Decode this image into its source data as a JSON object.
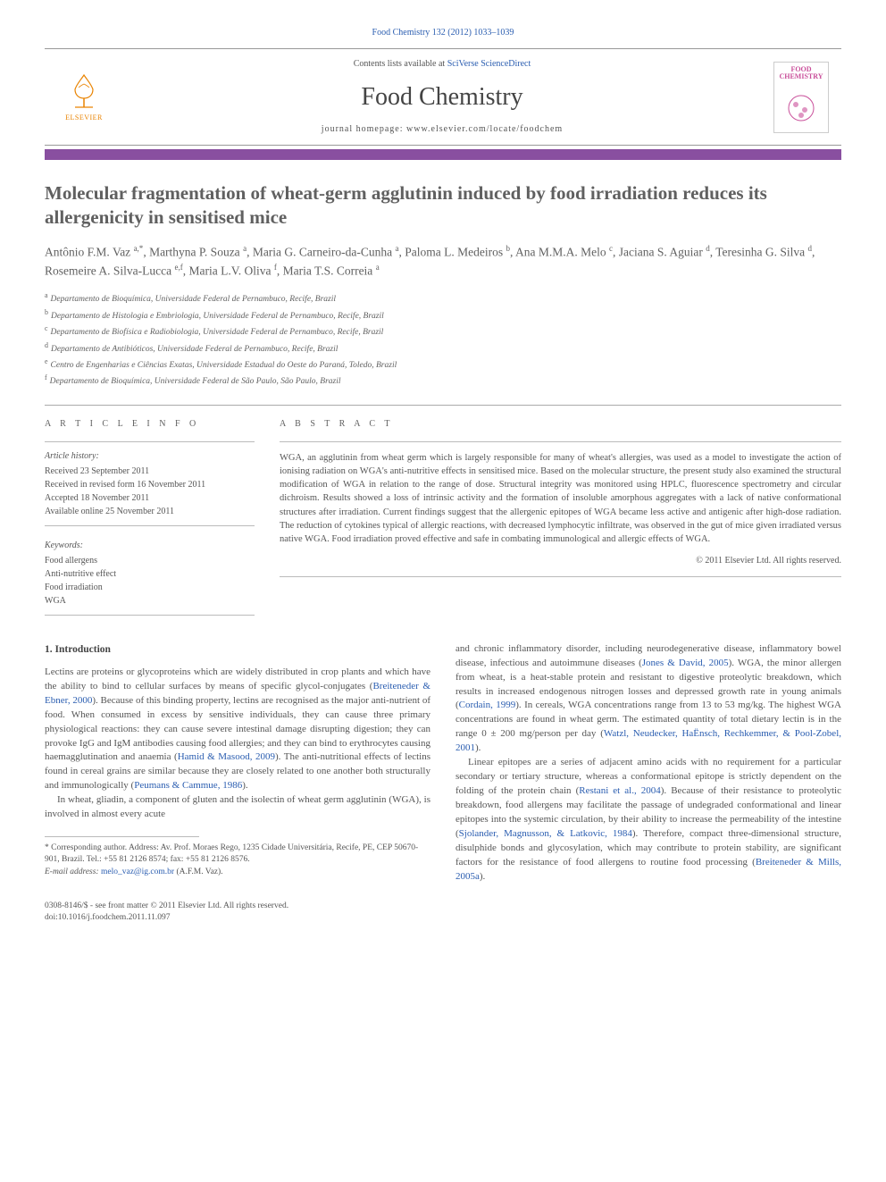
{
  "journalRef": {
    "text": "Food Chemistry 132 (2012) 1033–1039",
    "link": "Food Chemistry"
  },
  "header": {
    "contentsPrefix": "Contents lists available at ",
    "contentsLink": "SciVerse ScienceDirect",
    "journalName": "Food Chemistry",
    "homepageLabel": "journal homepage: ",
    "homepageUrl": "www.elsevier.com/locate/foodchem",
    "elsevierWord": "ELSEVIER",
    "coverTitle": "FOOD CHEMISTRY"
  },
  "article": {
    "title": "Molecular fragmentation of wheat-germ agglutinin induced by food irradiation reduces its allergenicity in sensitised mice",
    "authorsHtml": "Antônio F.M. Vaz <sup>a,*</sup>, Marthyna P. Souza <sup>a</sup>, Maria G. Carneiro-da-Cunha <sup>a</sup>, Paloma L. Medeiros <sup>b</sup>, Ana M.M.A. Melo <sup>c</sup>, Jaciana S. Aguiar <sup>d</sup>, Teresinha G. Silva <sup>d</sup>, Rosemeire A. Silva-Lucca <sup>e,f</sup>, Maria L.V. Oliva <sup>f</sup>, Maria T.S. Correia <sup>a</sup>"
  },
  "affiliations": [
    {
      "key": "a",
      "text": "Departamento de Bioquímica, Universidade Federal de Pernambuco, Recife, Brazil"
    },
    {
      "key": "b",
      "text": "Departamento de Histologia e Embriologia, Universidade Federal de Pernambuco, Recife, Brazil"
    },
    {
      "key": "c",
      "text": "Departamento de Biofísica e Radiobiologia, Universidade Federal de Pernambuco, Recife, Brazil"
    },
    {
      "key": "d",
      "text": "Departamento de Antibióticos, Universidade Federal de Pernambuco, Recife, Brazil"
    },
    {
      "key": "e",
      "text": "Centro de Engenharias e Ciências Exatas, Universidade Estadual do Oeste do Paraná, Toledo, Brazil"
    },
    {
      "key": "f",
      "text": "Departamento de Bioquímica, Universidade Federal de São Paulo, São Paulo, Brazil"
    }
  ],
  "info": {
    "sectionLabel": "a r t i c l e   i n f o",
    "historyTitle": "Article history:",
    "history": [
      "Received 23 September 2011",
      "Received in revised form 16 November 2011",
      "Accepted 18 November 2011",
      "Available online 25 November 2011"
    ],
    "keywordsTitle": "Keywords:",
    "keywords": [
      "Food allergens",
      "Anti-nutritive effect",
      "Food irradiation",
      "WGA"
    ]
  },
  "abstract": {
    "sectionLabel": "a b s t r a c t",
    "text": "WGA, an agglutinin from wheat germ which is largely responsible for many of wheat's allergies, was used as a model to investigate the action of ionising radiation on WGA's anti-nutritive effects in sensitised mice. Based on the molecular structure, the present study also examined the structural modification of WGA in relation to the range of dose. Structural integrity was monitored using HPLC, fluorescence spectrometry and circular dichroism. Results showed a loss of intrinsic activity and the formation of insoluble amorphous aggregates with a lack of native conformational structures after irradiation. Current findings suggest that the allergenic epitopes of WGA became less active and antigenic after high-dose radiation. The reduction of cytokines typical of allergic reactions, with decreased lymphocytic infiltrate, was observed in the gut of mice given irradiated versus native WGA. Food irradiation proved effective and safe in combating immunological and allergic effects of WGA.",
    "copyright": "© 2011 Elsevier Ltd. All rights reserved."
  },
  "body": {
    "heading": "1. Introduction",
    "leftParas": [
      "Lectins are proteins or glycoproteins which are widely distributed in crop plants and which have the ability to bind to cellular surfaces by means of specific glycol-conjugates (<a>Breiteneder & Ebner, 2000</a>). Because of this binding property, lectins are recognised as the major anti-nutrient of food. When consumed in excess by sensitive individuals, they can cause three primary physiological reactions: they can cause severe intestinal damage disrupting digestion; they can provoke IgG and IgM antibodies causing food allergies; and they can bind to erythrocytes causing haemagglutination and anaemia (<a>Hamid & Masood, 2009</a>). The anti-nutritional effects of lectins found in cereal grains are similar because they are closely related to one another both structurally and immunologically (<a>Peumans & Cammue, 1986</a>).",
      "In wheat, gliadin, a component of gluten and the isolectin of wheat germ agglutinin (WGA), is involved in almost every acute"
    ],
    "rightParas": [
      "and chronic inflammatory disorder, including neurodegenerative disease, inflammatory bowel disease, infectious and autoimmune diseases (<a>Jones & David, 2005</a>). WGA, the minor allergen from wheat, is a heat-stable protein and resistant to digestive proteolytic breakdown, which results in increased endogenous nitrogen losses and depressed growth rate in young animals (<a>Cordain, 1999</a>). In cereals, WGA concentrations range from 13 to 53 mg/kg. The highest WGA concentrations are found in wheat germ. The estimated quantity of total dietary lectin is in the range 0 ± 200 mg/person per day (<a>Watzl, Neudecker, HaËnsch, Rechkemmer, & Pool-Zobel, 2001</a>).",
      "Linear epitopes are a series of adjacent amino acids with no requirement for a particular secondary or tertiary structure, whereas a conformational epitope is strictly dependent on the folding of the protein chain (<a>Restani et al., 2004</a>). Because of their resistance to proteolytic breakdown, food allergens may facilitate the passage of undegraded conformational and linear epitopes into the systemic circulation, by their ability to increase the permeability of the intestine (<a>Sjolander, Magnusson, & Latkovic, 1984</a>). Therefore, compact three-dimensional structure, disulphide bonds and glycosylation, which may contribute to protein stability, are significant factors for the resistance of food allergens to routine food processing (<a>Breiteneder & Mills, 2005a</a>)."
    ]
  },
  "footnote": {
    "corresponding": "* Corresponding author. Address: Av. Prof. Moraes Rego, 1235 Cidade Universitária, Recife, PE, CEP 50670-901, Brazil. Tel.: +55 81 2126 8574; fax: +55 81 2126 8576.",
    "emailLabel": "E-mail address: ",
    "email": "melo_vaz@ig.com.br",
    "emailSuffix": " (A.F.M. Vaz)."
  },
  "footer": {
    "left1": "0308-8146/$ - see front matter © 2011 Elsevier Ltd. All rights reserved.",
    "left2": "doi:10.1016/j.foodchem.2011.11.097"
  },
  "colors": {
    "purpleBar": "#894fa0",
    "link": "#2a5db0",
    "elsevierOrange": "#e98300",
    "coverPink": "#c94f9a",
    "text": "#555555",
    "border": "#aaaaaa"
  }
}
